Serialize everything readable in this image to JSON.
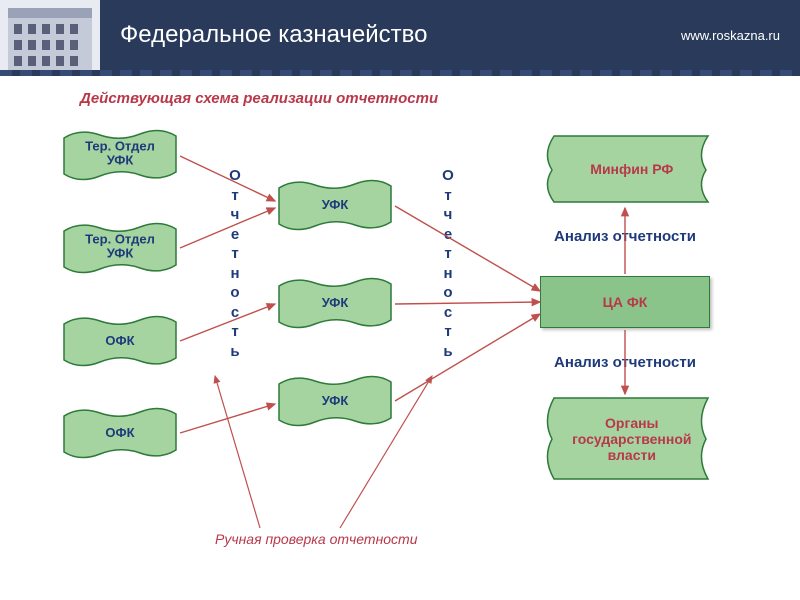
{
  "header": {
    "title": "Федеральное казначейство",
    "url": "www.roskazna.ru",
    "bg_color": "#2a3a5a",
    "text_color": "#ffffff"
  },
  "diagram": {
    "title": "Действующая схема реализации отчетности",
    "title_color": "#b8384a",
    "flag_fill": "#a6d4a1",
    "flag_stroke": "#2d7a3a",
    "rect_fill": "#8bc48b",
    "wave_fill": "#a6d4a1",
    "arrow_color": "#c0504d",
    "column1": [
      {
        "label": "Тер. Отдел\nУФК"
      },
      {
        "label": "Тер. Отдел\nУФК"
      },
      {
        "label": "ОФК"
      },
      {
        "label": "ОФК"
      }
    ],
    "column2": [
      {
        "label": "УФК"
      },
      {
        "label": "УФК"
      },
      {
        "label": "УФК"
      }
    ],
    "right": {
      "top": "Минфин РФ",
      "mid": "ЦА ФК",
      "bot": "Органы\nгосударственной\nвласти"
    },
    "vertical_label": "Отчетность",
    "analysis_label": "Анализ отчетности",
    "footer_note": "Ручная проверка отчетности"
  }
}
